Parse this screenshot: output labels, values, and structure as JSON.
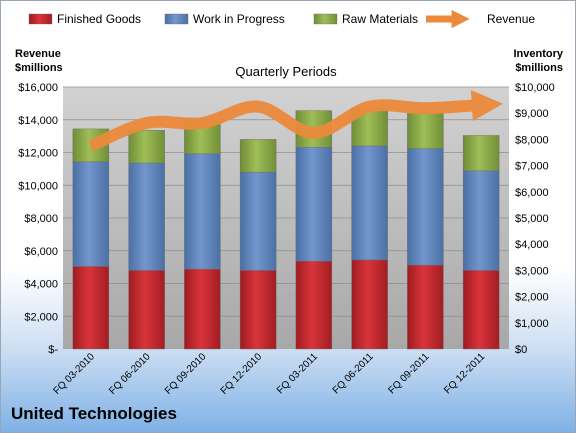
{
  "company": "United Technologies",
  "chart_data": {
    "type": "bar",
    "stacked": true,
    "subtitle": "Quarterly Periods",
    "left_axis_title": [
      "Revenue",
      "$millions"
    ],
    "right_axis_title": [
      "Inventory",
      "$millions"
    ],
    "categories": [
      "FQ 03-2010",
      "FQ 06-2010",
      "FQ 09-2010",
      "FQ 12-2010",
      "FQ 03-2011",
      "FQ 06-2011",
      "FQ 09-2011",
      "FQ 12-2011"
    ],
    "left_ticks": [
      "$16,000",
      "$14,000",
      "$12,000",
      "$10,000",
      "$8,000",
      "$6,000",
      "$4,000",
      "$2,000",
      "$-"
    ],
    "right_ticks": [
      "$10,000",
      "$9,000",
      "$8,000",
      "$7,000",
      "$6,000",
      "$5,000",
      "$4,000",
      "$3,000",
      "$2,000",
      "$1,000",
      "$0"
    ],
    "left_ylim": [
      0,
      16000
    ],
    "right_ylim": [
      0,
      10000
    ],
    "series": [
      {
        "name": "Finished Goods",
        "axis": "right",
        "color": "#c0262d",
        "values": [
          3150,
          3000,
          3050,
          3000,
          3350,
          3400,
          3200,
          3000
        ]
      },
      {
        "name": "Work in Progress",
        "axis": "right",
        "color": "#5f86bf",
        "values": [
          4000,
          4100,
          4400,
          3750,
          4350,
          4350,
          4450,
          3800
        ]
      },
      {
        "name": "Raw Materials",
        "axis": "right",
        "color": "#8cab48",
        "values": [
          1250,
          1250,
          1250,
          1250,
          1400,
          1450,
          1400,
          1350
        ]
      },
      {
        "name": "Revenue",
        "axis": "left",
        "type": "line",
        "color": "#ec8a3c",
        "values": [
          12400,
          13800,
          13800,
          14800,
          13200,
          14800,
          14700,
          14900
        ]
      }
    ],
    "legend_position": "top",
    "grid": true
  }
}
